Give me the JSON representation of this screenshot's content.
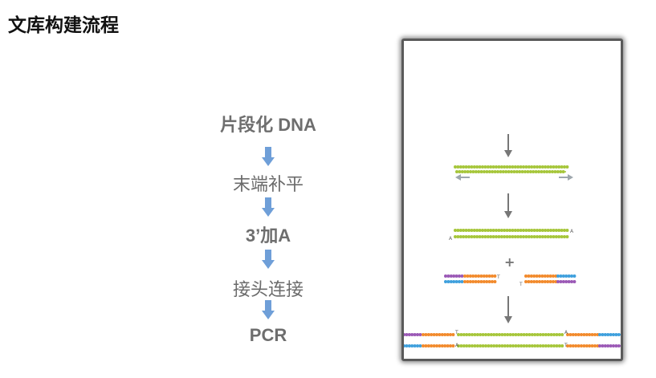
{
  "title": "文库构建流程",
  "steps": [
    {
      "label": "片段化 DNA"
    },
    {
      "label": "末端补平"
    },
    {
      "label": "3’加A"
    },
    {
      "label": "接头连接"
    },
    {
      "label": "PCR"
    }
  ],
  "panel": {
    "plus_symbol": "+",
    "a_letter": "A",
    "t_letter": "T"
  },
  "colors": {
    "step_arrow": "#6f9fd8",
    "dna_green": "#a6c63a",
    "adapter_orange": "#f28a2c",
    "adapter_purple": "#9b59b6",
    "adapter_blue": "#3fa0dd",
    "process_arrow": "#777777",
    "end_arrow": "#9ea7ad"
  }
}
